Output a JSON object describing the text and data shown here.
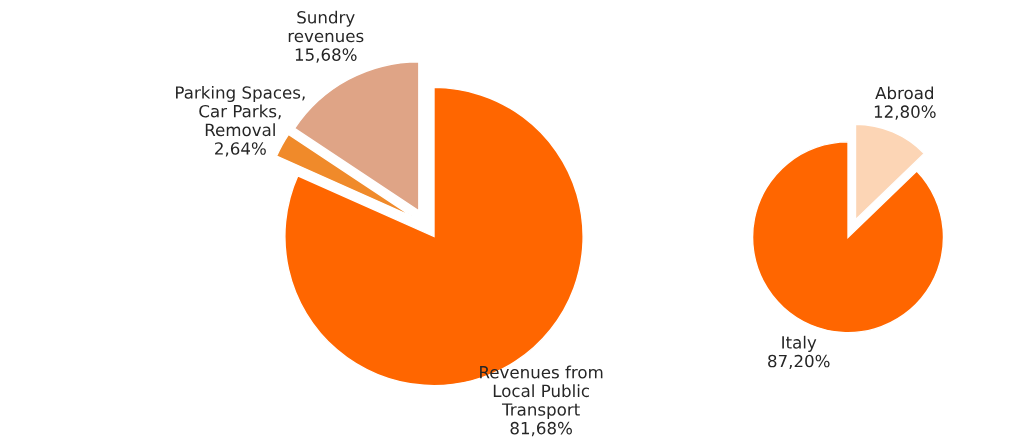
{
  "chart_data": [
    {
      "type": "pie",
      "categories": [
        "Revenues from\nLocal Public\nTransport",
        "Parking Spaces,\nCar Parks,\nRemoval",
        "Sundry\nrevenues"
      ],
      "values": [
        81.68,
        2.64,
        15.68
      ],
      "value_labels": [
        "81,68%",
        "2,64%",
        "15,68%"
      ],
      "colors": [
        "#ff6600",
        "#f08a2a",
        "#dfa486"
      ],
      "legend": false
    },
    {
      "type": "pie",
      "categories": [
        "Abroad",
        "Italy"
      ],
      "values": [
        12.8,
        87.2
      ],
      "value_labels": [
        "12,80%",
        "87,20%"
      ],
      "colors": [
        "#fcd5b5",
        "#ff6600"
      ],
      "legend": false
    }
  ]
}
